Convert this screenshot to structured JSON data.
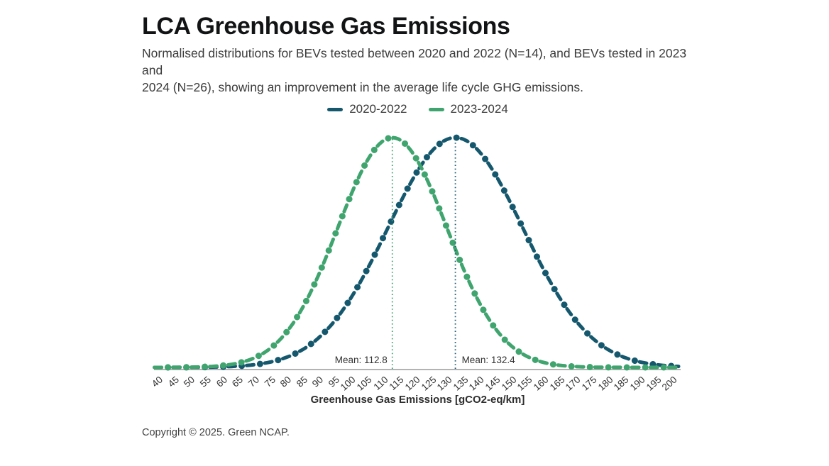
{
  "header": {
    "title": "LCA Greenhouse Gas Emissions",
    "subtitle": "Normalised distributions for BEVs tested between 2020 and 2022 (N=14), and BEVs tested in 2023 and\n2024 (N=26), showing an improvement in the average life cycle GHG emissions."
  },
  "legend": {
    "items": [
      {
        "label": "2020-2022",
        "color": "#15586E"
      },
      {
        "label": "2023-2024",
        "color": "#3FA46E"
      }
    ]
  },
  "chart_data": {
    "type": "line",
    "subtype": "normal-distribution-curves",
    "title": "LCA Greenhouse Gas Emissions",
    "xlabel": "Greenhouse Gas Emissions [gCO2-eq/km]",
    "ylabel": "",
    "grid": false,
    "y_axis_shown": false,
    "x_min": 40,
    "x_max": 200,
    "x_tick_step": 5,
    "ticks": [
      40,
      45,
      50,
      55,
      60,
      65,
      70,
      75,
      80,
      85,
      90,
      95,
      100,
      105,
      110,
      115,
      120,
      125,
      130,
      135,
      140,
      145,
      150,
      155,
      160,
      165,
      170,
      175,
      180,
      185,
      190,
      195,
      200
    ],
    "series": [
      {
        "name": "2020-2022",
        "n": 14,
        "color": "#15586E",
        "mean": 132.4,
        "stddev_estimate": 21,
        "peak_normalised": 1.0,
        "mean_annotation": "Mean: 132.4",
        "annotation_side": "right",
        "line_style": "dash-dot"
      },
      {
        "name": "2023-2024",
        "n": 26,
        "color": "#3FA46E",
        "mean": 112.8,
        "stddev_estimate": 17,
        "peak_normalised": 1.0,
        "mean_annotation": "Mean: 112.8",
        "annotation_side": "left",
        "line_style": "dash-dot"
      }
    ]
  },
  "footer": {
    "copyright": "Copyright © 2025. Green NCAP."
  }
}
